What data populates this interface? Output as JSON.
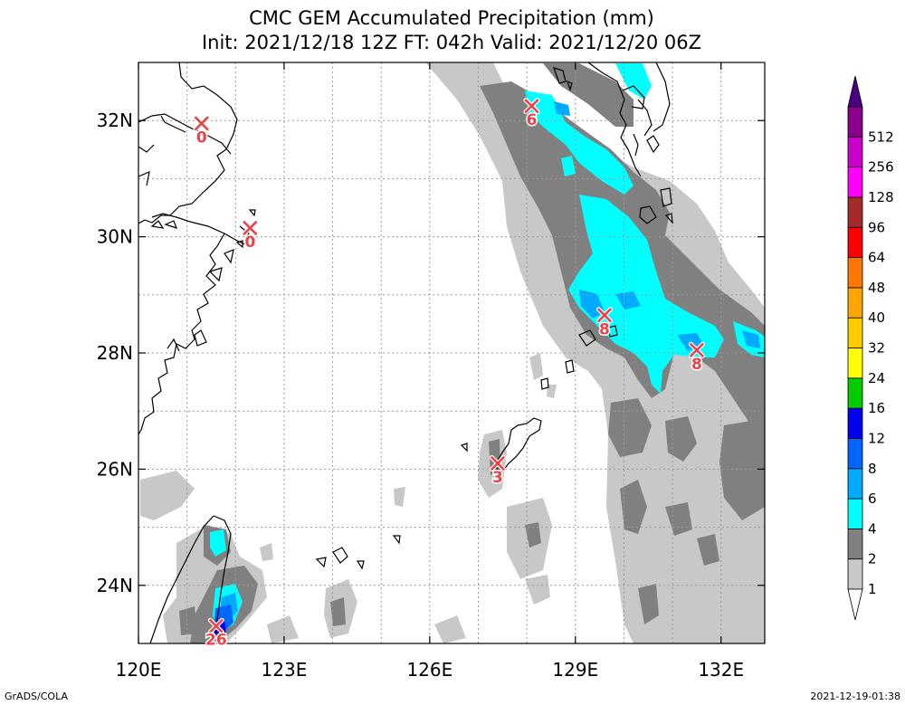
{
  "title": {
    "line1": "CMC GEM Accumulated Precipitation (mm)",
    "line2": "Init: 2021/12/18 12Z  FT: 042h  Valid: 2021/12/20 06Z"
  },
  "map": {
    "lon_range": [
      120,
      132.9
    ],
    "lat_range": [
      23.0,
      33.0
    ],
    "lon_ticks": [
      {
        "value": 120,
        "label": "120E"
      },
      {
        "value": 123,
        "label": "123E"
      },
      {
        "value": 126,
        "label": "126E"
      },
      {
        "value": 129,
        "label": "129E"
      },
      {
        "value": 132,
        "label": "132E"
      }
    ],
    "lat_ticks": [
      {
        "value": 24,
        "label": "24N"
      },
      {
        "value": 26,
        "label": "26N"
      },
      {
        "value": 28,
        "label": "28N"
      },
      {
        "value": 30,
        "label": "30N"
      },
      {
        "value": 32,
        "label": "32N"
      }
    ],
    "grid": true
  },
  "colorbar": {
    "levels": [
      {
        "label": "1",
        "color": "#c8c8c8"
      },
      {
        "label": "2",
        "color": "#808080"
      },
      {
        "label": "4",
        "color": "#00ffff"
      },
      {
        "label": "6",
        "color": "#00aaff"
      },
      {
        "label": "8",
        "color": "#0066ff"
      },
      {
        "label": "12",
        "color": "#0000ee"
      },
      {
        "label": "16",
        "color": "#00cc00"
      },
      {
        "label": "24",
        "color": "#ffff00"
      },
      {
        "label": "32",
        "color": "#ffcc00"
      },
      {
        "label": "40",
        "color": "#ffa500"
      },
      {
        "label": "48",
        "color": "#ff7700"
      },
      {
        "label": "64",
        "color": "#ff0000"
      },
      {
        "label": "96",
        "color": "#a52a2a"
      },
      {
        "label": "128",
        "color": "#ff00ff"
      },
      {
        "label": "256",
        "color": "#cc00cc"
      },
      {
        "label": "512",
        "color": "#8a008a"
      }
    ],
    "over_color": "#4b0082"
  },
  "stations": [
    {
      "lon": 121.3,
      "lat": 31.95,
      "value": "0"
    },
    {
      "lon": 122.3,
      "lat": 30.15,
      "value": "0"
    },
    {
      "lon": 128.1,
      "lat": 32.25,
      "value": "6"
    },
    {
      "lon": 129.6,
      "lat": 28.65,
      "value": "8"
    },
    {
      "lon": 131.5,
      "lat": 28.05,
      "value": "8"
    },
    {
      "lon": 127.4,
      "lat": 26.1,
      "value": "3"
    },
    {
      "lon": 121.6,
      "lat": 23.3,
      "value": "26"
    }
  ],
  "footer": {
    "left": "GrADS/COLA",
    "right": "2021-12-19-01:38"
  }
}
